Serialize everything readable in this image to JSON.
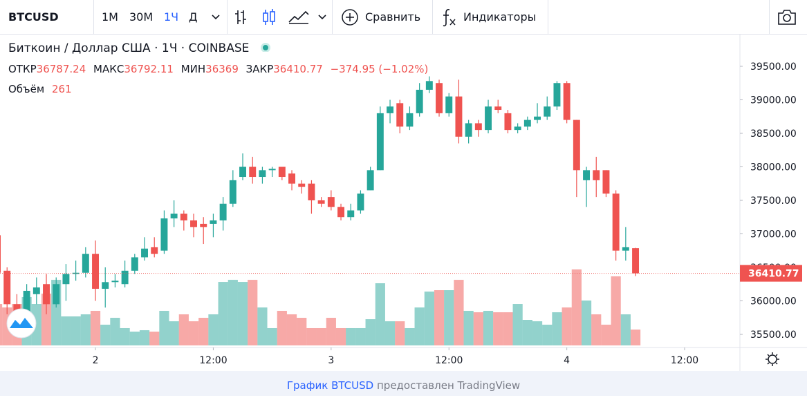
{
  "toolbar": {
    "symbol": "BTCUSD",
    "intervals": [
      "1M",
      "30M",
      "1Ч",
      "Д"
    ],
    "compare": "Сравнить",
    "indicators": "Индикаторы"
  },
  "legend": {
    "title": "Биткоин / Доллар США · 1Ч · COINBASE",
    "open_label": "ОТКР",
    "high_label": "МАКС",
    "low_label": "МИН",
    "close_label": "ЗАКР",
    "change": "−374.95 (−1.02%)",
    "volume_label": "Объём"
  },
  "footer": {
    "link": "График BTCUSD",
    "text": "предоставлен TradingView"
  },
  "chart_data": {
    "type": "candlestick",
    "x": [
      14,
      15,
      16,
      17,
      18,
      19,
      20,
      21,
      22,
      23,
      24,
      25,
      26,
      27,
      28,
      29,
      30,
      31,
      32,
      33,
      34,
      35,
      36,
      37,
      38,
      39,
      40,
      41,
      42,
      43,
      44,
      45,
      46,
      47,
      48,
      49,
      50,
      51,
      52,
      53,
      54,
      55,
      56,
      57,
      58,
      59,
      60,
      61,
      62,
      63,
      64,
      65,
      66,
      67,
      68,
      69,
      70,
      71,
      72,
      73,
      74,
      75,
      76,
      77,
      78,
      79
    ],
    "open": [
      36980,
      36450,
      35950,
      35800,
      36100,
      36250,
      35950,
      36250,
      36400,
      36420,
      36700,
      36180,
      36280,
      36250,
      36450,
      36650,
      36800,
      36750,
      37230,
      37300,
      37200,
      37150,
      37150,
      37200,
      37450,
      37850,
      38000,
      37850,
      37950,
      38000,
      37900,
      37750,
      37750,
      37500,
      37550,
      37400,
      37250,
      37350,
      37650,
      37950,
      38800,
      38950,
      38600,
      38800,
      39150,
      39250,
      38800,
      39050,
      38450,
      38650,
      38550,
      38900,
      38800,
      38550,
      38600,
      38700,
      38750,
      38900,
      39250,
      38700,
      37800,
      37950,
      37950,
      37600,
      36750,
      36787.24
    ],
    "high": [
      37000,
      36500,
      36100,
      36250,
      36350,
      36400,
      36350,
      36550,
      36600,
      36800,
      36900,
      36500,
      36400,
      36600,
      36700,
      36950,
      36950,
      37350,
      37500,
      37350,
      37300,
      37250,
      37300,
      37550,
      37950,
      38200,
      38150,
      38000,
      38000,
      38000,
      37950,
      37800,
      37800,
      37550,
      37650,
      37450,
      37450,
      37650,
      38000,
      38900,
      39000,
      39000,
      38900,
      39250,
      39350,
      39300,
      39100,
      39300,
      38700,
      38700,
      39000,
      39000,
      38850,
      38650,
      38750,
      38950,
      39050,
      39280,
      39280,
      38700,
      38000,
      38150,
      37950,
      37650,
      37100,
      36792.11
    ],
    "low": [
      36350,
      35800,
      35700,
      35750,
      35950,
      35800,
      35900,
      36000,
      36300,
      36350,
      36000,
      35900,
      36200,
      36200,
      36400,
      36600,
      36650,
      36700,
      37100,
      37050,
      36950,
      36850,
      36950,
      37050,
      37400,
      37800,
      37750,
      37750,
      37850,
      37800,
      37650,
      37600,
      37300,
      37400,
      37350,
      37200,
      37200,
      37300,
      37650,
      37950,
      38650,
      38500,
      38550,
      38750,
      39100,
      38750,
      38750,
      38350,
      38350,
      38450,
      38500,
      38800,
      38500,
      38500,
      38550,
      38650,
      38700,
      38850,
      38650,
      37550,
      37400,
      37550,
      37550,
      36600,
      36600,
      36369
    ],
    "close": [
      36420,
      35950,
      35850,
      36150,
      36200,
      35950,
      36250,
      36400,
      36420,
      36700,
      36180,
      36280,
      36300,
      36450,
      36650,
      36780,
      36700,
      37230,
      37300,
      37200,
      37100,
      37100,
      37200,
      37450,
      37800,
      38000,
      37850,
      37950,
      37970,
      37850,
      37750,
      37700,
      37500,
      37450,
      37400,
      37250,
      37350,
      37600,
      37950,
      38800,
      38900,
      38600,
      38800,
      39150,
      39280,
      38800,
      39050,
      38450,
      38650,
      38550,
      38900,
      38850,
      38550,
      38600,
      38700,
      38750,
      38900,
      39250,
      38700,
      37950,
      37950,
      37800,
      37600,
      36750,
      36800,
      36410.77
    ],
    "volume": [
      681,
      624,
      681,
      795,
      681,
      851,
      1078,
      477,
      477,
      511,
      568,
      341,
      454,
      284,
      227,
      250,
      227,
      568,
      397,
      511,
      397,
      454,
      511,
      1044,
      1078,
      1044,
      1078,
      624,
      284,
      568,
      511,
      454,
      284,
      284,
      454,
      284,
      284,
      284,
      431,
      1022,
      397,
      397,
      284,
      624,
      885,
      908,
      908,
      1078,
      568,
      545,
      568,
      545,
      545,
      681,
      420,
      397,
      341,
      545,
      624,
      1249,
      738,
      511,
      341,
      1135,
      511,
      261
    ],
    "up_color": "#26a69a",
    "down_color": "#ef5350",
    "xlim": [
      14.28,
      89.63
    ],
    "xticks": [
      {
        "value": 24,
        "label": "2"
      },
      {
        "value": 36,
        "label": "12:00"
      },
      {
        "value": 48,
        "label": "3"
      },
      {
        "value": 60,
        "label": "12:00"
      },
      {
        "value": 72,
        "label": "4"
      },
      {
        "value": 84,
        "label": "12:00"
      }
    ],
    "ylim": [
      35335,
      39974
    ],
    "yticks": [
      {
        "value": 35500,
        "label": "35500.00"
      },
      {
        "value": 36000,
        "label": "36000.00"
      },
      {
        "value": 36500,
        "label": "36500.00"
      },
      {
        "value": 37000,
        "label": "37000.00"
      },
      {
        "value": 37500,
        "label": "37500.00"
      },
      {
        "value": 38000,
        "label": "38000.00"
      },
      {
        "value": 38500,
        "label": "38500.00"
      },
      {
        "value": 39000,
        "label": "39000.00"
      },
      {
        "value": 39500,
        "label": "39500.00"
      }
    ],
    "grid": false
  }
}
